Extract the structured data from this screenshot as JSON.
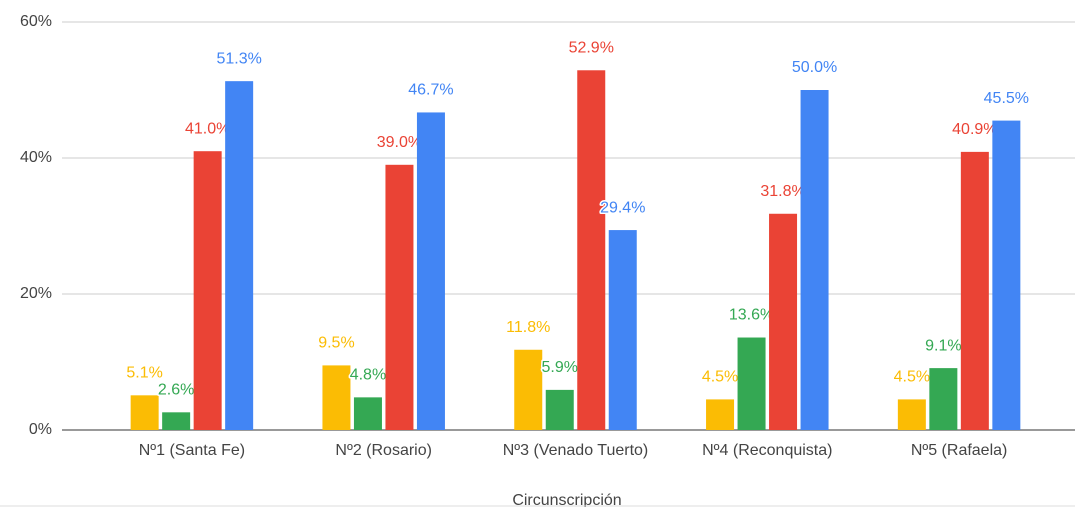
{
  "chart_data": {
    "type": "bar",
    "x_label": "Circunscripción",
    "categories": [
      "Nº1 (Santa Fe)",
      "Nº2 (Rosario)",
      "Nº3 (Venado Tuerto)",
      "Nº4 (Reconquista)",
      "Nº5 (Rafaela)"
    ],
    "series": [
      {
        "color": "#fbbc04",
        "values": [
          5.1,
          9.5,
          11.8,
          4.5,
          4.5
        ],
        "value_labels": [
          "5.1%",
          "9.5%",
          "11.8%",
          "4.5%",
          "4.5%"
        ]
      },
      {
        "color": "#34a853",
        "values": [
          2.6,
          4.8,
          5.9,
          13.6,
          9.1
        ],
        "value_labels": [
          "2.6%",
          "4.8%",
          "5.9%",
          "13.6%",
          "9.1%"
        ]
      },
      {
        "color": "#ea4335",
        "values": [
          41.0,
          39.0,
          52.9,
          31.8,
          40.9
        ],
        "value_labels": [
          "41.0%",
          "39.0%",
          "52.9%",
          "31.8%",
          "40.9%"
        ]
      },
      {
        "color": "#4285f4",
        "values": [
          51.3,
          46.7,
          29.4,
          50.0,
          45.5
        ],
        "value_labels": [
          "51.3%",
          "46.7%",
          "29.4%",
          "50.0%",
          "45.5%"
        ]
      }
    ],
    "ylim": [
      0,
      60
    ],
    "yticks": [
      {
        "value": 0,
        "label": "0%"
      },
      {
        "value": 20,
        "label": "20%"
      },
      {
        "value": 40,
        "label": "40%"
      },
      {
        "value": 60,
        "label": "60%"
      }
    ],
    "grid": true
  }
}
